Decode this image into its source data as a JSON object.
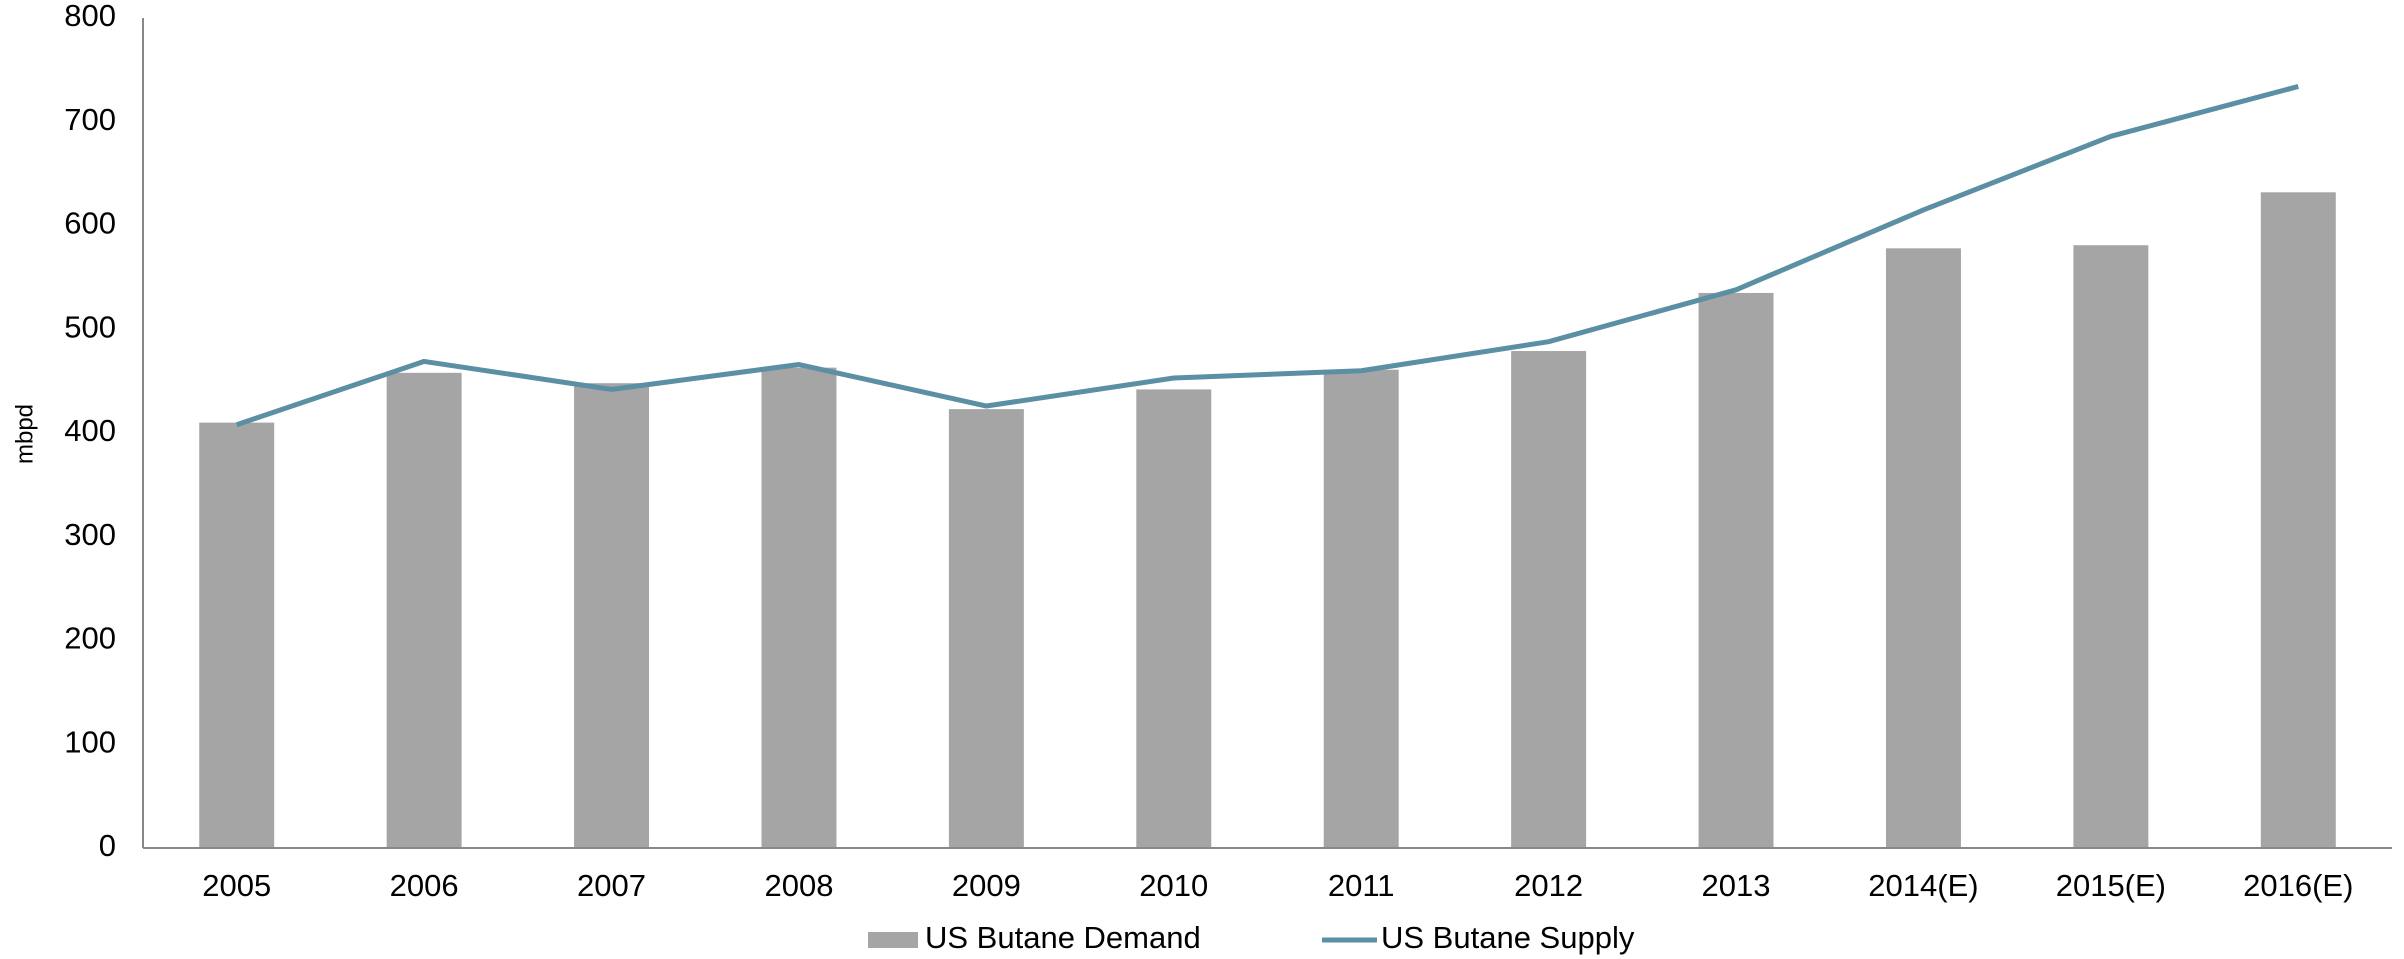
{
  "chart_data": {
    "type": "bar_line",
    "ylabel": "mbpd",
    "categories": [
      "2005",
      "2006",
      "2007",
      "2008",
      "2009",
      "2010",
      "2011",
      "2012",
      "2013",
      "2014(E)",
      "2015(E)",
      "2016(E)"
    ],
    "series": [
      {
        "name": "US Butane Demand",
        "type": "bar",
        "color": "#a5a5a5",
        "values": [
          410,
          458,
          448,
          463,
          423,
          442,
          461,
          479,
          535,
          578,
          581,
          632
        ]
      },
      {
        "name": "US Butane Supply",
        "type": "line",
        "color": "#5b8fa3",
        "values": [
          408,
          469,
          442,
          466,
          426,
          453,
          460,
          488,
          538,
          615,
          686,
          734
        ]
      }
    ],
    "ylim": [
      0,
      800
    ],
    "yticks": [
      0,
      100,
      200,
      300,
      400,
      500,
      600,
      700,
      800
    ],
    "grid": false
  }
}
